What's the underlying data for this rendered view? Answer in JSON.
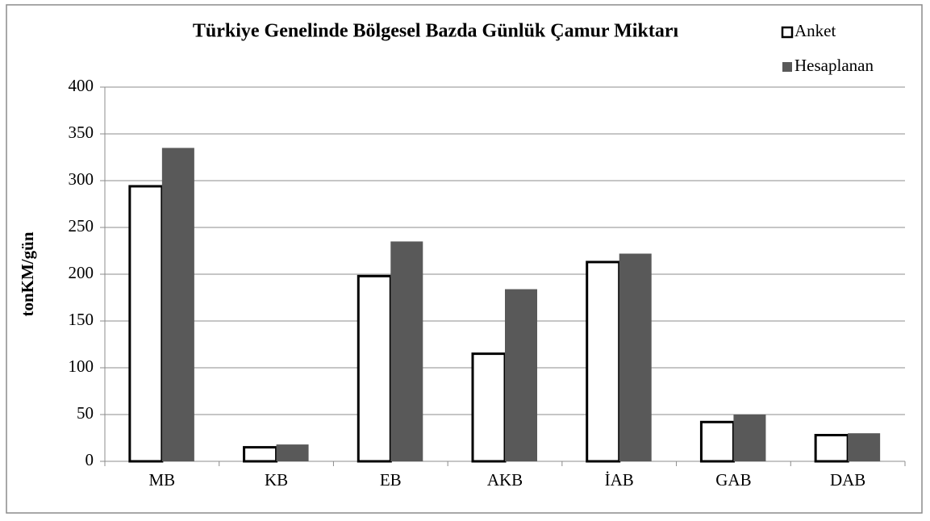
{
  "chart_data": {
    "type": "bar",
    "title": "Türkiye Genelinde Bölgesel Bazda  Günlük Çamur  Miktarı",
    "y_label": "tonKM/gün",
    "categories": [
      "MB",
      "KB",
      "EB",
      "AKB",
      "İAB",
      "GAB",
      "DAB"
    ],
    "series": [
      {
        "name": "Anket",
        "color": "#ffffff",
        "values": [
          294,
          15,
          198,
          115,
          213,
          42,
          28
        ]
      },
      {
        "name": "Hesaplanan",
        "color": "#595959",
        "values": [
          335,
          18,
          235,
          184,
          222,
          50,
          30
        ]
      }
    ],
    "ylim": [
      0,
      400
    ],
    "yticks": [
      0,
      50,
      100,
      150,
      200,
      250,
      300,
      350,
      400
    ],
    "grid": true,
    "legend": "top-right"
  }
}
